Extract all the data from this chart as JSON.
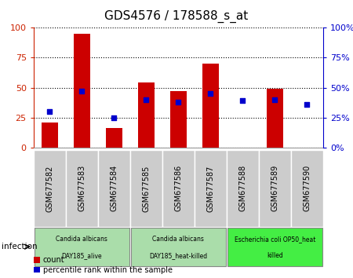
{
  "title": "GDS4576 / 178588_s_at",
  "samples": [
    "GSM677582",
    "GSM677583",
    "GSM677584",
    "GSM677585",
    "GSM677586",
    "GSM677587",
    "GSM677588",
    "GSM677589",
    "GSM677590"
  ],
  "counts": [
    21,
    95,
    16,
    54,
    47,
    70,
    0,
    49,
    0
  ],
  "percentile_ranks": [
    30,
    47,
    25,
    40,
    38,
    45,
    39,
    40,
    36
  ],
  "bar_color": "#cc0000",
  "dot_color": "#0000cc",
  "ylim": [
    0,
    100
  ],
  "yticks": [
    0,
    25,
    50,
    75,
    100
  ],
  "groups": [
    {
      "label1": "Candida albicans",
      "label2": "DAY185_alive",
      "start": 0,
      "end": 3,
      "color": "#aaddaa"
    },
    {
      "label1": "Candida albicans",
      "label2": "DAY185_heat-killed",
      "start": 3,
      "end": 6,
      "color": "#aaddaa"
    },
    {
      "label1": "Escherichia coli OP50_heat",
      "label2": "killed",
      "start": 6,
      "end": 9,
      "color": "#44ee44"
    }
  ],
  "infection_label": "infection",
  "legend_count_label": "count",
  "legend_pct_label": "percentile rank within the sample",
  "left_yaxis_color": "#cc2200",
  "right_yaxis_color": "#0000cc",
  "bar_width": 0.5,
  "tick_bg_color": "#cccccc",
  "fig_bg": "#ffffff"
}
